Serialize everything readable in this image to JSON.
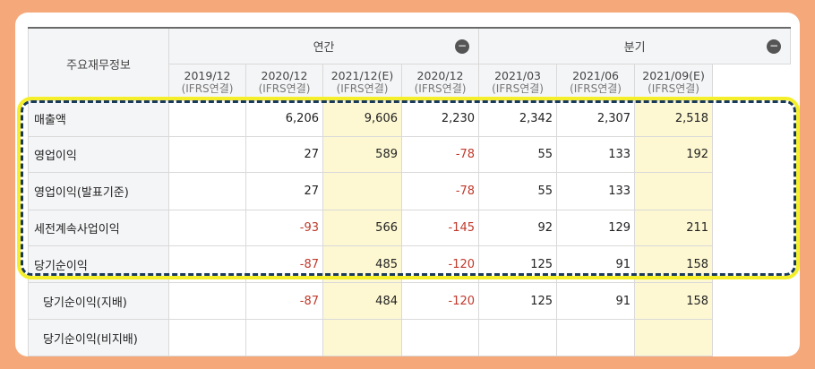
{
  "table": {
    "corner_label": "주요재무정보",
    "groups": {
      "annual": "연간",
      "quarterly": "분기",
      "collapse_symbol": "−"
    },
    "columns": [
      {
        "period": "2019/12",
        "basis": "(IFRS연결)"
      },
      {
        "period": "2020/12",
        "basis": "(IFRS연결)"
      },
      {
        "period": "2021/12(E)",
        "basis": "(IFRS연결)"
      },
      {
        "period": "2020/12",
        "basis": "(IFRS연결)"
      },
      {
        "period": "2021/03",
        "basis": "(IFRS연결)"
      },
      {
        "period": "2021/06",
        "basis": "(IFRS연결)"
      },
      {
        "period": "2021/09(E)",
        "basis": "(IFRS연결)"
      }
    ],
    "rows": [
      {
        "label": "매출액",
        "values": [
          "",
          "6,206",
          "9,606",
          "2,230",
          "2,342",
          "2,307",
          "2,518"
        ]
      },
      {
        "label": "영업이익",
        "values": [
          "",
          "27",
          "589",
          "-78",
          "55",
          "133",
          "192"
        ]
      },
      {
        "label": "영업이익(발표기준)",
        "values": [
          "",
          "27",
          "",
          "-78",
          "55",
          "133",
          ""
        ]
      },
      {
        "label": "세전계속사업이익",
        "values": [
          "",
          "-93",
          "566",
          "-145",
          "92",
          "129",
          "211"
        ]
      },
      {
        "label": "당기순이익",
        "values": [
          "",
          "-87",
          "485",
          "-120",
          "125",
          "91",
          "158"
        ]
      },
      {
        "label": "당기순이익(지배)",
        "values": [
          "",
          "-87",
          "484",
          "-120",
          "125",
          "91",
          "158"
        ]
      },
      {
        "label": "당기순이익(비지배)",
        "values": [
          "",
          "",
          "",
          "",
          "",
          "",
          ""
        ]
      }
    ]
  },
  "colors": {
    "background": "#f5a97a",
    "negative": "#c0392b",
    "estimate_fill": "#fdf8d2",
    "highlight_dash": "#1a3a5c",
    "highlight_glow": "#f4ef2a"
  }
}
